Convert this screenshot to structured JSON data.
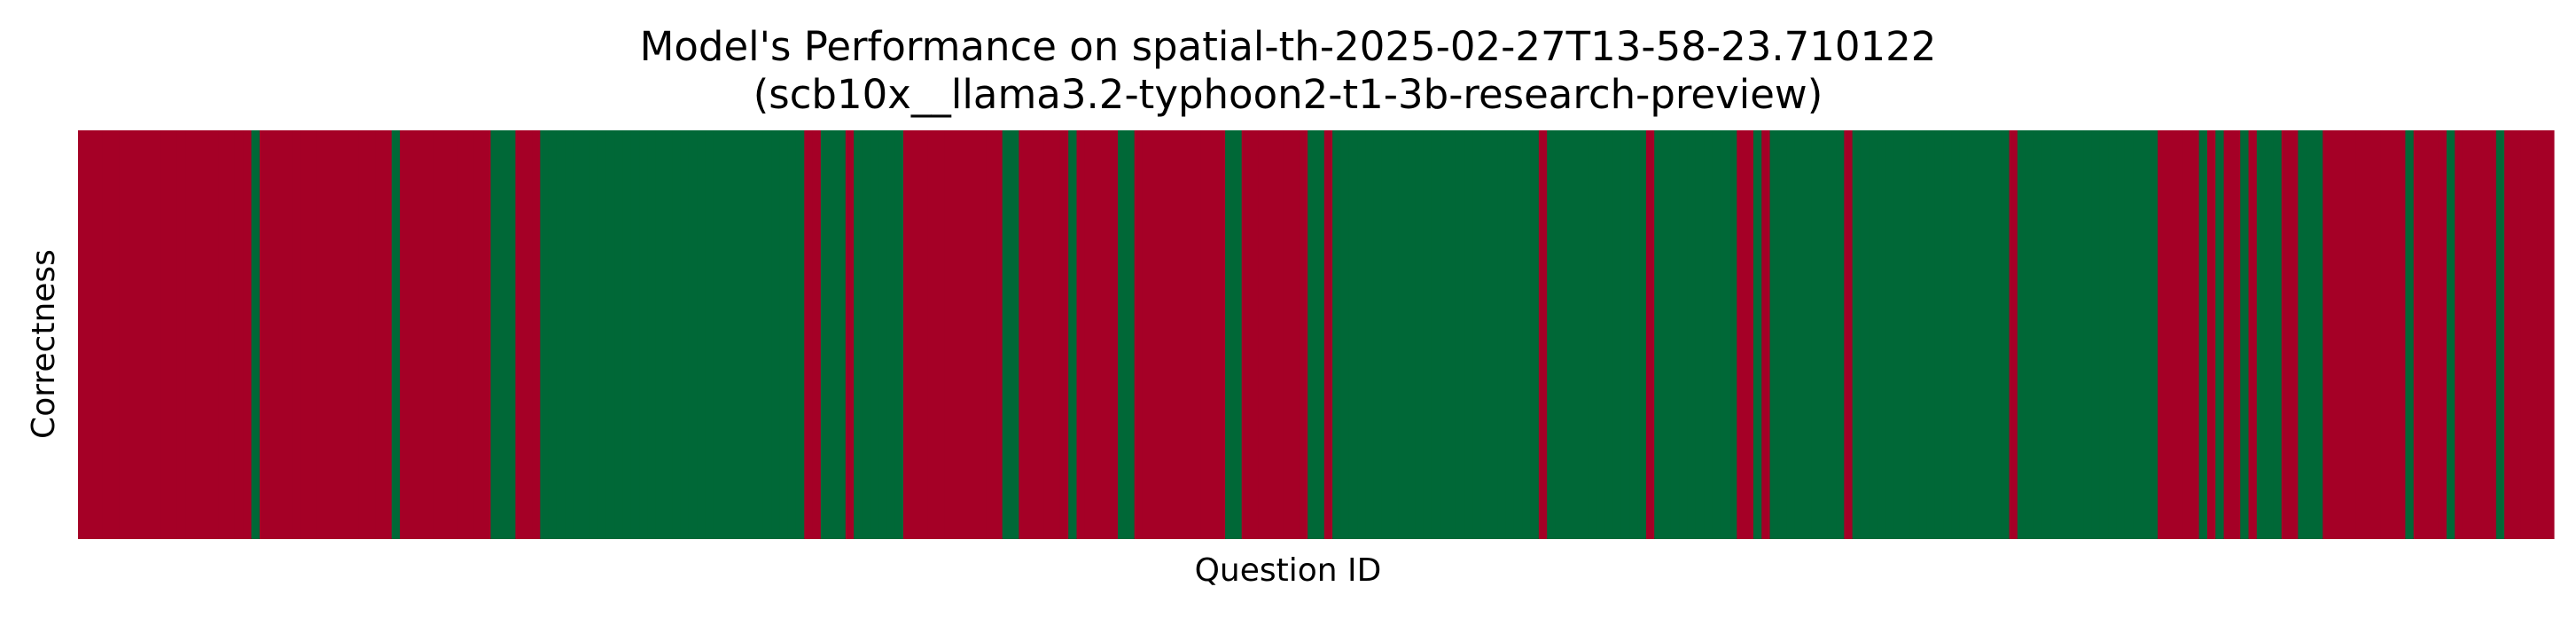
{
  "chart_data": {
    "type": "heatmap",
    "title": "Model's Performance on spatial-th-2025-02-27T13-58-23.710122",
    "subtitle": "(scb10x__llama3.2-typhoon2-t1-3b-research-preview)",
    "xlabel": "Question ID",
    "ylabel": "Correctness",
    "value_map": {
      "0": "incorrect",
      "1": "correct"
    },
    "colors": {
      "incorrect": "#a50026",
      "correct": "#006837"
    },
    "n_questions": 300,
    "values": [
      0,
      0,
      0,
      0,
      0,
      0,
      0,
      0,
      0,
      0,
      0,
      0,
      0,
      0,
      0,
      0,
      0,
      0,
      0,
      0,
      0,
      1,
      0,
      0,
      0,
      0,
      0,
      0,
      0,
      0,
      0,
      0,
      0,
      0,
      0,
      0,
      0,
      0,
      1,
      0,
      0,
      0,
      0,
      0,
      0,
      0,
      0,
      0,
      0,
      0,
      1,
      1,
      1,
      0,
      0,
      0,
      1,
      1,
      1,
      1,
      1,
      1,
      1,
      1,
      1,
      1,
      1,
      1,
      1,
      1,
      1,
      1,
      1,
      1,
      1,
      1,
      1,
      1,
      1,
      1,
      1,
      1,
      1,
      1,
      1,
      1,
      1,
      1,
      0,
      0,
      1,
      1,
      1,
      0,
      1,
      1,
      1,
      1,
      1,
      1,
      0,
      0,
      0,
      0,
      0,
      0,
      0,
      0,
      0,
      0,
      0,
      0,
      1,
      1,
      0,
      0,
      0,
      0,
      0,
      0,
      1,
      0,
      0,
      0,
      0,
      0,
      1,
      1,
      0,
      0,
      0,
      0,
      0,
      0,
      0,
      0,
      0,
      0,
      0,
      1,
      1,
      0,
      0,
      0,
      0,
      0,
      0,
      0,
      0,
      1,
      1,
      0,
      1,
      1,
      1,
      1,
      1,
      1,
      1,
      1,
      1,
      1,
      1,
      1,
      1,
      1,
      1,
      1,
      1,
      1,
      1,
      1,
      1,
      1,
      1,
      1,
      1,
      0,
      1,
      1,
      1,
      1,
      1,
      1,
      1,
      1,
      1,
      1,
      1,
      1,
      0,
      1,
      1,
      1,
      1,
      1,
      1,
      1,
      1,
      1,
      1,
      0,
      0,
      1,
      0,
      1,
      1,
      1,
      1,
      1,
      1,
      1,
      1,
      1,
      0,
      1,
      1,
      1,
      1,
      1,
      1,
      1,
      1,
      1,
      1,
      1,
      1,
      1,
      1,
      1,
      1,
      1,
      1,
      1,
      0,
      1,
      1,
      1,
      1,
      1,
      1,
      1,
      1,
      1,
      1,
      1,
      1,
      1,
      1,
      1,
      1,
      1,
      0,
      0,
      0,
      0,
      0,
      1,
      0,
      1,
      0,
      0,
      1,
      0,
      1,
      1,
      1,
      0,
      0,
      1,
      1,
      1,
      0,
      0,
      0,
      0,
      0,
      0,
      0,
      0,
      0,
      0,
      1,
      0,
      0,
      0,
      0,
      1,
      0,
      0,
      0,
      0,
      0,
      1,
      0,
      0,
      0,
      0,
      0,
      0
    ]
  }
}
